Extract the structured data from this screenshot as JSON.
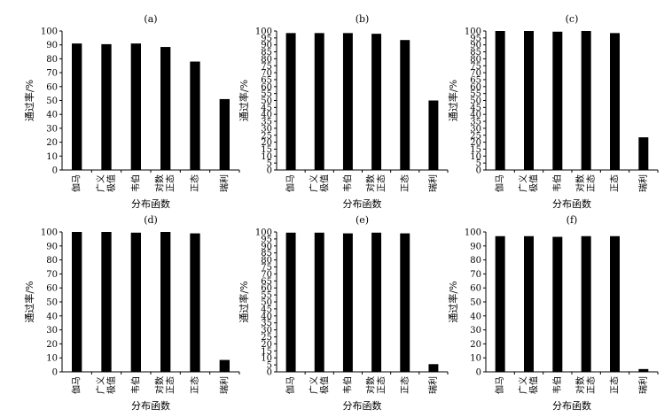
{
  "figure": {
    "panel_titles": [
      "(a)",
      "(b)",
      "(c)",
      "(d)",
      "(e)",
      "(f)"
    ]
  },
  "chart_data": [
    {
      "type": "bar",
      "title": "(a)",
      "categories": [
        "伽马",
        "广义极值",
        "韦伯",
        "对数正态",
        "正态",
        "瑞利"
      ],
      "category_lines": [
        [
          "伽马"
        ],
        [
          "广义",
          "极值"
        ],
        [
          "韦伯"
        ],
        [
          "对数",
          "正态"
        ],
        [
          "正态"
        ],
        [
          "瑞利"
        ]
      ],
      "values": [
        91,
        90.5,
        91,
        88.5,
        78,
        51
      ],
      "xlabel": "分布函数",
      "ylabel": "通过率/%",
      "ylim": [
        0,
        100
      ],
      "yticks": [
        0,
        10,
        20,
        30,
        40,
        50,
        60,
        70,
        80,
        90,
        100
      ],
      "bar_color": "#000000",
      "grid": false
    },
    {
      "type": "bar",
      "title": "(b)",
      "categories": [
        "伽马",
        "广义极值",
        "韦伯",
        "对数正态",
        "正态",
        "瑞利"
      ],
      "category_lines": [
        [
          "伽马"
        ],
        [
          "广义",
          "极值"
        ],
        [
          "韦伯"
        ],
        [
          "对数",
          "正态"
        ],
        [
          "正态"
        ],
        [
          "瑞利"
        ]
      ],
      "values": [
        98.5,
        98.5,
        98.5,
        98,
        93.5,
        50
      ],
      "xlabel": "分布函数",
      "ylabel": "通过率/%",
      "ylim": [
        0,
        100
      ],
      "yticks": [
        0,
        5,
        10,
        15,
        20,
        25,
        30,
        35,
        40,
        45,
        50,
        55,
        60,
        65,
        70,
        75,
        80,
        85,
        90,
        95,
        100
      ],
      "bar_color": "#000000",
      "grid": false
    },
    {
      "type": "bar",
      "title": "(c)",
      "categories": [
        "伽马",
        "广义极值",
        "韦伯",
        "对数正态",
        "正态",
        "瑞利"
      ],
      "category_lines": [
        [
          "伽马"
        ],
        [
          "广义",
          "极值"
        ],
        [
          "韦伯"
        ],
        [
          "对数",
          "正态"
        ],
        [
          "正态"
        ],
        [
          "瑞利"
        ]
      ],
      "values": [
        100,
        100,
        99.5,
        100,
        98.5,
        23.5
      ],
      "xlabel": "分布函数",
      "ylabel": "通过率/%",
      "ylim": [
        0,
        100
      ],
      "yticks": [
        0,
        5,
        10,
        15,
        20,
        25,
        30,
        35,
        40,
        45,
        50,
        55,
        60,
        65,
        70,
        75,
        80,
        85,
        90,
        95,
        100
      ],
      "bar_color": "#000000",
      "grid": false
    },
    {
      "type": "bar",
      "title": "(d)",
      "categories": [
        "伽马",
        "广义极值",
        "韦伯",
        "对数正态",
        "正态",
        "瑞利"
      ],
      "category_lines": [
        [
          "伽马"
        ],
        [
          "广义",
          "极值"
        ],
        [
          "韦伯"
        ],
        [
          "对数",
          "正态"
        ],
        [
          "正态"
        ],
        [
          "瑞利"
        ]
      ],
      "values": [
        100,
        100,
        99.5,
        100,
        99,
        8.5
      ],
      "xlabel": "分布函数",
      "ylabel": "通过率/%",
      "ylim": [
        0,
        100
      ],
      "yticks": [
        0,
        10,
        20,
        30,
        40,
        50,
        60,
        70,
        80,
        90,
        100
      ],
      "bar_color": "#000000",
      "grid": false
    },
    {
      "type": "bar",
      "title": "(e)",
      "categories": [
        "伽马",
        "广义极值",
        "韦伯",
        "对数正态",
        "正态",
        "瑞利"
      ],
      "category_lines": [
        [
          "伽马"
        ],
        [
          "广义",
          "极值"
        ],
        [
          "韦伯"
        ],
        [
          "对数",
          "正态"
        ],
        [
          "正态"
        ],
        [
          "瑞利"
        ]
      ],
      "values": [
        99.5,
        99.5,
        99,
        99.5,
        99,
        5.5
      ],
      "xlabel": "分布函数",
      "ylabel": "通过率/%",
      "ylim": [
        0,
        100
      ],
      "yticks": [
        0,
        5,
        10,
        15,
        20,
        25,
        30,
        35,
        40,
        45,
        50,
        55,
        60,
        65,
        70,
        75,
        80,
        85,
        90,
        95,
        100
      ],
      "bar_color": "#000000",
      "grid": false
    },
    {
      "type": "bar",
      "title": "(f)",
      "categories": [
        "伽马",
        "广义极值",
        "韦伯",
        "对数正态",
        "正态",
        "瑞利"
      ],
      "category_lines": [
        [
          "伽马"
        ],
        [
          "广义",
          "极值"
        ],
        [
          "韦伯"
        ],
        [
          "对数",
          "正态"
        ],
        [
          "正态"
        ],
        [
          "瑞利"
        ]
      ],
      "values": [
        97,
        97,
        96.5,
        97,
        97,
        2
      ],
      "xlabel": "分布函数",
      "ylabel": "通过率/%",
      "ylim": [
        0,
        100
      ],
      "yticks": [
        0,
        10,
        20,
        30,
        40,
        50,
        60,
        70,
        80,
        90,
        100
      ],
      "bar_color": "#000000",
      "grid": false
    }
  ]
}
